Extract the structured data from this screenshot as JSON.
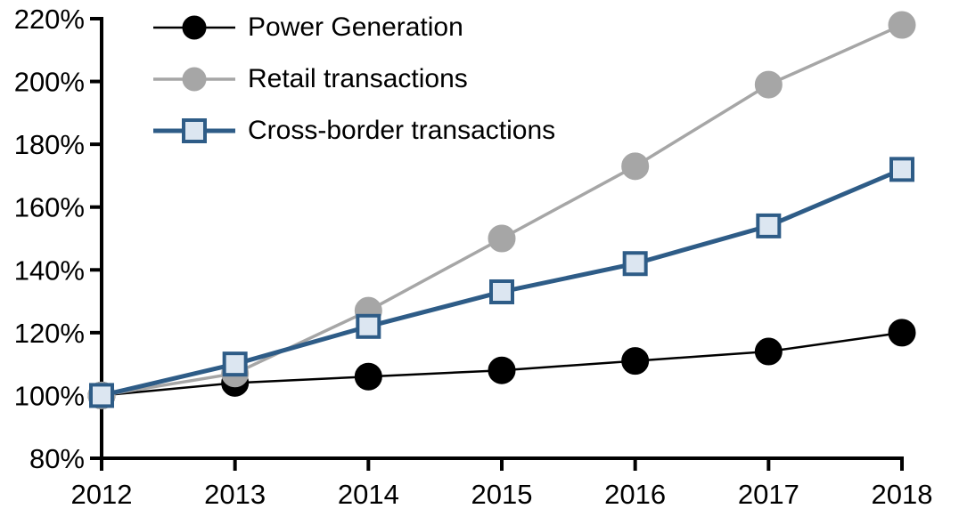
{
  "chart_data": {
    "type": "line",
    "title": "",
    "xlabel": "",
    "ylabel": "",
    "grid": false,
    "background": "#FFFFFF",
    "axis_color": "#000000",
    "legend_position": "top-left",
    "x": [
      2012,
      2013,
      2014,
      2015,
      2016,
      2017,
      2018
    ],
    "xtick_labels": [
      "2012",
      "2013",
      "2014",
      "2015",
      "2016",
      "2017",
      "2018"
    ],
    "ylim": [
      80,
      220
    ],
    "ytick_step": 20,
    "ytick_labels": [
      "80%",
      "100%",
      "120%",
      "140%",
      "160%",
      "180%",
      "200%",
      "220%"
    ],
    "series": [
      {
        "name": "Power Generation",
        "values": [
          100,
          104,
          106,
          108,
          111,
          114,
          120
        ],
        "color": "#000000",
        "line_width": 2.5,
        "marker": "circle",
        "marker_fill": "#000000",
        "marker_stroke": "#000000"
      },
      {
        "name": "Retail transactions",
        "values": [
          100,
          107,
          127,
          150,
          173,
          199,
          218
        ],
        "color": "#A6A6A6",
        "line_width": 3.5,
        "marker": "circle",
        "marker_fill": "#A6A6A6",
        "marker_stroke": "#A6A6A6"
      },
      {
        "name": "Cross-border transactions",
        "values": [
          100,
          110,
          122,
          133,
          142,
          154,
          172
        ],
        "color": "#2E5C87",
        "line_width": 5,
        "marker": "square",
        "marker_fill": "#DCE6F1",
        "marker_stroke": "#2E5C87"
      }
    ]
  }
}
